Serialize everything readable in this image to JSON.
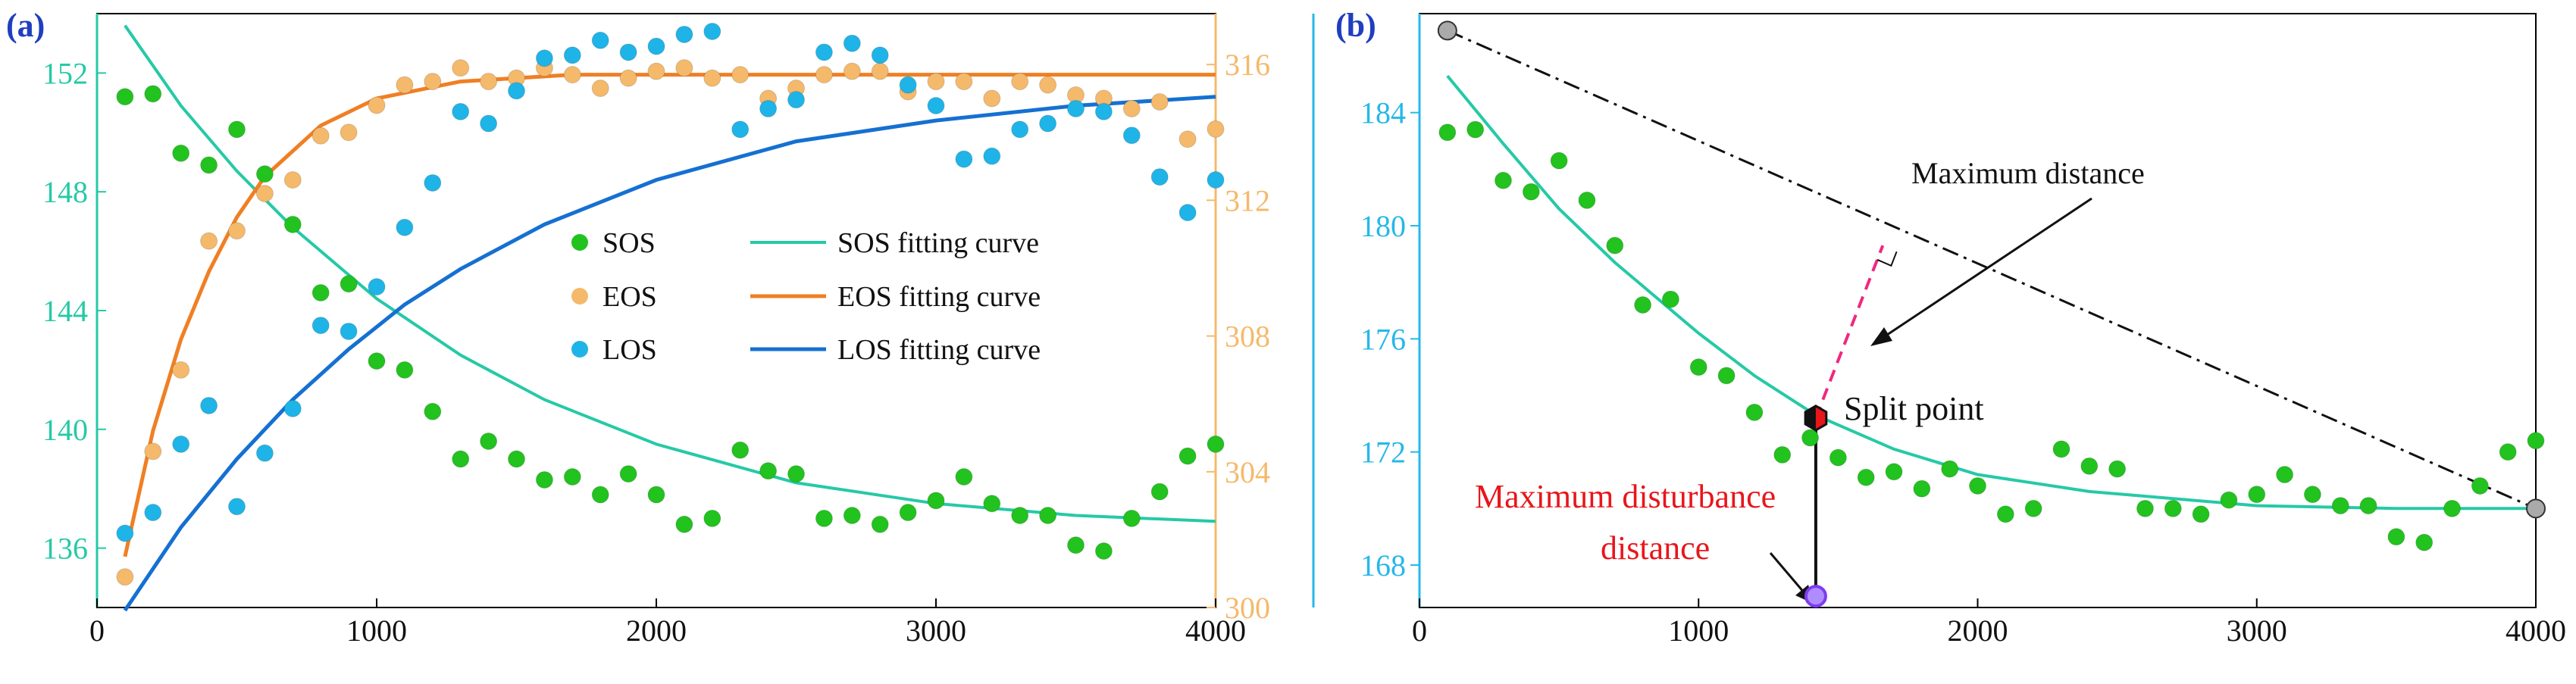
{
  "chart_data": [
    {
      "panel": "a",
      "type": "scatter",
      "panel_label": "(a)",
      "x": [
        100,
        200,
        300,
        400,
        500,
        600,
        700,
        800,
        900,
        1000,
        1100,
        1200,
        1300,
        1400,
        1500,
        1600,
        1700,
        1800,
        1900,
        2000,
        2100,
        2200,
        2300,
        2400,
        2500,
        2600,
        2700,
        2800,
        2900,
        3000,
        3100,
        3200,
        3300,
        3400,
        3500,
        3600,
        3700,
        3800,
        3900,
        4000
      ],
      "xlim": [
        0,
        4000
      ],
      "xticks": [
        "0",
        "1000",
        "2000",
        "3000",
        "4000"
      ],
      "y_left": {
        "lim": [
          134,
          154
        ],
        "ticks": [
          "136",
          "140",
          "144",
          "148",
          "152"
        ],
        "color": "#26c9a6"
      },
      "y_right": {
        "lim": [
          300,
          317.5
        ],
        "ticks": [
          "300",
          "304",
          "308",
          "312",
          "316"
        ],
        "color": "#f5b96b"
      },
      "series": [
        {
          "name": "SOS",
          "axis": "left",
          "color": "#22c21f",
          "values": [
            151.2,
            151.3,
            149.3,
            148.9,
            150.1,
            148.6,
            146.9,
            144.6,
            144.9,
            142.3,
            142.0,
            140.6,
            139.0,
            139.6,
            139.0,
            138.3,
            138.4,
            137.8,
            138.5,
            137.8,
            136.8,
            137.0,
            139.3,
            138.6,
            138.5,
            137.0,
            137.1,
            136.8,
            137.2,
            137.6,
            138.4,
            137.5,
            137.1,
            137.1,
            136.1,
            135.9,
            137.0,
            137.9,
            139.1,
            139.5
          ]
        },
        {
          "name": "EOS",
          "axis": "right",
          "color": "#f5b96b",
          "values": [
            300.9,
            304.6,
            307.0,
            310.8,
            311.1,
            312.2,
            312.6,
            313.9,
            314.0,
            314.8,
            315.4,
            315.5,
            315.9,
            315.5,
            315.6,
            315.9,
            315.7,
            315.3,
            315.6,
            315.8,
            315.9,
            315.6,
            315.7,
            315.0,
            315.3,
            315.7,
            315.8,
            315.8,
            315.2,
            315.5,
            315.5,
            315.0,
            315.5,
            315.4,
            315.1,
            315.0,
            314.7,
            314.9,
            313.8,
            314.1
          ]
        }
      ],
      "sos_fit": [
        {
          "x": 100,
          "y": 153.6
        },
        {
          "x": 300,
          "y": 150.9
        },
        {
          "x": 500,
          "y": 148.7
        },
        {
          "x": 700,
          "y": 146.8
        },
        {
          "x": 1000,
          "y": 144.4
        },
        {
          "x": 1300,
          "y": 142.5
        },
        {
          "x": 1600,
          "y": 141.0
        },
        {
          "x": 2000,
          "y": 139.5
        },
        {
          "x": 2500,
          "y": 138.2
        },
        {
          "x": 3000,
          "y": 137.5
        },
        {
          "x": 3500,
          "y": 137.1
        },
        {
          "x": 4000,
          "y": 136.9
        }
      ],
      "eos_fit": [
        {
          "x": 100,
          "y": 301.5
        },
        {
          "x": 200,
          "y": 305.2
        },
        {
          "x": 300,
          "y": 307.9
        },
        {
          "x": 400,
          "y": 309.9
        },
        {
          "x": 500,
          "y": 311.5
        },
        {
          "x": 600,
          "y": 312.7
        },
        {
          "x": 800,
          "y": 314.2
        },
        {
          "x": 1000,
          "y": 315.0
        },
        {
          "x": 1300,
          "y": 315.5
        },
        {
          "x": 1700,
          "y": 315.7
        },
        {
          "x": 2500,
          "y": 315.7
        },
        {
          "x": 4000,
          "y": 315.7
        }
      ],
      "los_points": [
        {
          "x": 100,
          "y": 136.5
        },
        {
          "x": 200,
          "y": 137.2
        },
        {
          "x": 300,
          "y": 139.5
        },
        {
          "x": 400,
          "y": 140.8
        },
        {
          "x": 500,
          "y": 137.4
        },
        {
          "x": 600,
          "y": 139.2
        },
        {
          "x": 700,
          "y": 140.7
        },
        {
          "x": 800,
          "y": 143.5
        },
        {
          "x": 900,
          "y": 143.3
        },
        {
          "x": 1000,
          "y": 144.8
        },
        {
          "x": 1100,
          "y": 146.8
        },
        {
          "x": 1200,
          "y": 148.3
        },
        {
          "x": 1300,
          "y": 150.7
        },
        {
          "x": 1400,
          "y": 150.3
        },
        {
          "x": 1500,
          "y": 151.4
        },
        {
          "x": 1600,
          "y": 152.5
        },
        {
          "x": 1700,
          "y": 152.6
        },
        {
          "x": 1800,
          "y": 153.1
        },
        {
          "x": 1900,
          "y": 152.7
        },
        {
          "x": 2000,
          "y": 152.9
        },
        {
          "x": 2100,
          "y": 153.3
        },
        {
          "x": 2200,
          "y": 153.4
        },
        {
          "x": 2300,
          "y": 150.1
        },
        {
          "x": 2400,
          "y": 150.8
        },
        {
          "x": 2500,
          "y": 151.1
        },
        {
          "x": 2600,
          "y": 152.7
        },
        {
          "x": 2700,
          "y": 153.0
        },
        {
          "x": 2800,
          "y": 152.6
        },
        {
          "x": 2900,
          "y": 151.6
        },
        {
          "x": 3000,
          "y": 150.9
        },
        {
          "x": 3100,
          "y": 149.1
        },
        {
          "x": 3200,
          "y": 149.2
        },
        {
          "x": 3300,
          "y": 150.1
        },
        {
          "x": 3400,
          "y": 150.3
        },
        {
          "x": 3500,
          "y": 150.8
        },
        {
          "x": 3600,
          "y": 150.7
        },
        {
          "x": 3700,
          "y": 149.9
        },
        {
          "x": 3800,
          "y": 148.5
        },
        {
          "x": 3900,
          "y": 147.3
        },
        {
          "x": 4000,
          "y": 148.4
        }
      ],
      "los_fit": [
        {
          "x": 100,
          "y": 133.9
        },
        {
          "x": 300,
          "y": 136.7
        },
        {
          "x": 500,
          "y": 139.0
        },
        {
          "x": 700,
          "y": 141.0
        },
        {
          "x": 900,
          "y": 142.7
        },
        {
          "x": 1100,
          "y": 144.2
        },
        {
          "x": 1300,
          "y": 145.4
        },
        {
          "x": 1600,
          "y": 146.9
        },
        {
          "x": 2000,
          "y": 148.4
        },
        {
          "x": 2500,
          "y": 149.7
        },
        {
          "x": 3000,
          "y": 150.4
        },
        {
          "x": 3500,
          "y": 150.9
        },
        {
          "x": 4000,
          "y": 151.2
        }
      ],
      "legend": {
        "sos": "SOS",
        "eos": "EOS",
        "los": "LOS",
        "sos_fit": "SOS fitting curve",
        "eos_fit": "EOS fitting curve",
        "los_fit": "LOS fitting curve"
      },
      "colors": {
        "sos": "#22c21f",
        "eos": "#f5b96b",
        "los": "#1fb4e8",
        "sos_fit": "#26c9a6",
        "eos_fit": "#f07f24",
        "los_fit": "#1570d2",
        "label": "#1f3fc0"
      }
    },
    {
      "panel": "b",
      "type": "scatter",
      "panel_label": "(b)",
      "xlim": [
        0,
        4000
      ],
      "ylim": [
        166.5,
        187.5
      ],
      "xticks": [
        "0",
        "1000",
        "2000",
        "3000",
        "4000"
      ],
      "yticks": [
        "168",
        "172",
        "176",
        "180",
        "184"
      ],
      "axis_color": "#26b8e8",
      "x": [
        100,
        200,
        300,
        400,
        500,
        600,
        700,
        800,
        900,
        1000,
        1100,
        1200,
        1300,
        1400,
        1500,
        1600,
        1700,
        1800,
        1900,
        2000,
        2100,
        2200,
        2300,
        2400,
        2500,
        2600,
        2700,
        2800,
        2900,
        3000,
        3100,
        3200,
        3300,
        3400,
        3500,
        3600,
        3700,
        3800,
        3900,
        4000
      ],
      "values": [
        183.3,
        183.4,
        181.6,
        181.2,
        182.3,
        180.9,
        179.3,
        177.2,
        177.4,
        175.0,
        174.7,
        173.4,
        171.9,
        172.5,
        171.8,
        171.1,
        171.3,
        170.7,
        171.4,
        170.8,
        169.8,
        170.0,
        172.1,
        171.5,
        171.4,
        170.0,
        170.0,
        169.8,
        170.3,
        170.5,
        171.2,
        170.5,
        170.1,
        170.1,
        169.0,
        168.8,
        170.0,
        170.8,
        172.0,
        172.4
      ],
      "fit": [
        {
          "x": 100,
          "y": 185.3
        },
        {
          "x": 300,
          "y": 182.9
        },
        {
          "x": 500,
          "y": 180.6
        },
        {
          "x": 700,
          "y": 178.7
        },
        {
          "x": 1000,
          "y": 176.2
        },
        {
          "x": 1200,
          "y": 174.7
        },
        {
          "x": 1420,
          "y": 173.3
        },
        {
          "x": 1700,
          "y": 172.1
        },
        {
          "x": 2000,
          "y": 171.2
        },
        {
          "x": 2400,
          "y": 170.6
        },
        {
          "x": 3000,
          "y": 170.1
        },
        {
          "x": 3500,
          "y": 170.0
        },
        {
          "x": 4000,
          "y": 170.0
        }
      ],
      "chord": {
        "start": {
          "x": 100,
          "y": 186.9
        },
        "end": {
          "x": 4000,
          "y": 170.0
        }
      },
      "split_point": {
        "x": 1420,
        "y": 173.2
      },
      "perpendicular_foot": {
        "x": 1660,
        "y": 179.3
      },
      "disturbance_base": {
        "x": 1420,
        "y": 166.9
      },
      "annotations": {
        "maximum_distance": "Maximum distance",
        "split_point": "Split point",
        "maximum_disturbance_line1": "Maximum disturbance",
        "maximum_disturbance_line2": "distance"
      },
      "colors": {
        "points": "#22c21f",
        "fit": "#26c9a6",
        "chord": "#111111",
        "perp": "#f0287e",
        "split": "#e8161b",
        "disturbance_label": "#e8161b",
        "base_point": "#7b3cf2",
        "label": "#1f3fc0"
      }
    }
  ]
}
